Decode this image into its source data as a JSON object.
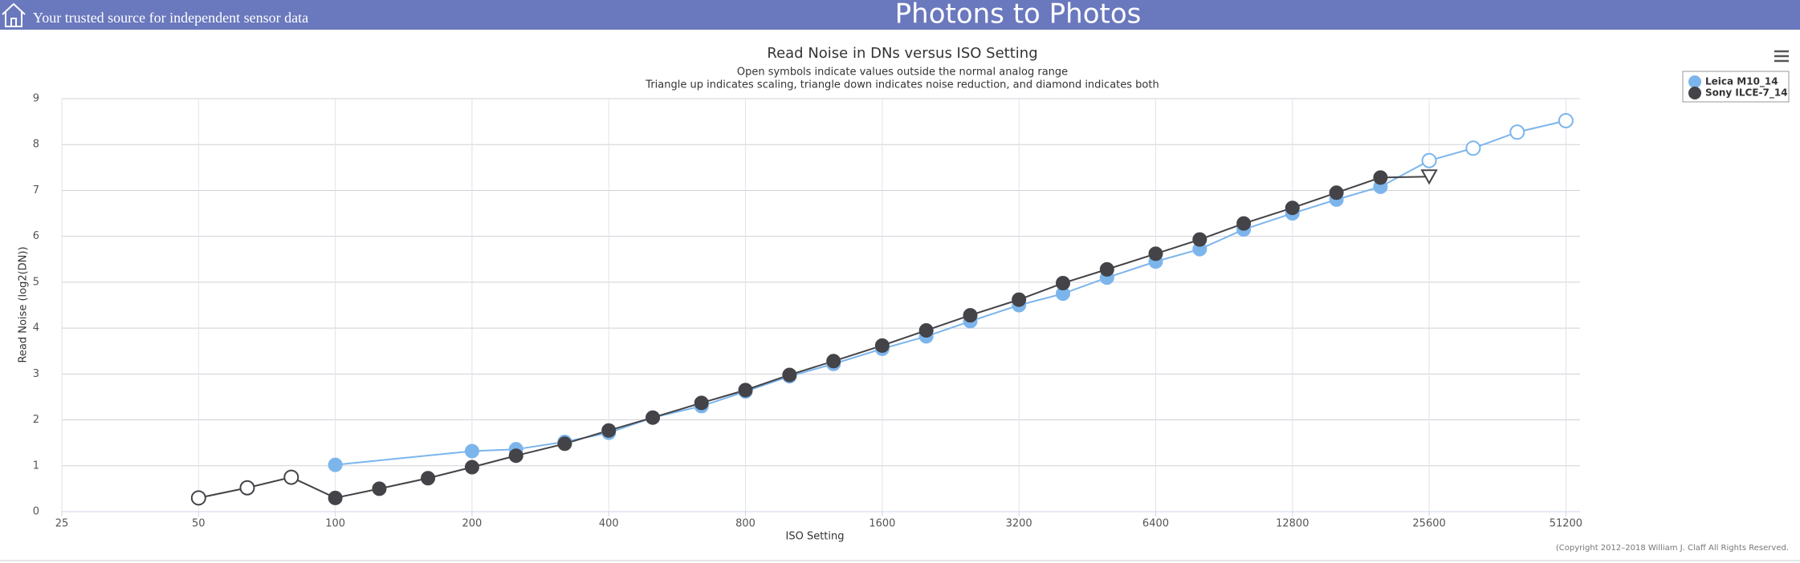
{
  "header": {
    "tagline": "Your trusted source for independent sensor data",
    "site_title": "Photons to Photos"
  },
  "copyright": "(Copyright 2012–2018 William J. Claff All Rights Reserved.",
  "chart_data": {
    "type": "line",
    "title": "Read Noise in DNs versus ISO Setting",
    "subtitle": [
      "Open symbols indicate values outside the normal analog range",
      "Triangle up indicates scaling, triangle down indicates noise reduction, and diamond indicates both"
    ],
    "x_label": "ISO Setting",
    "y_label": "Read Noise (log2(DN))",
    "x_scale": "log2",
    "xlim": [
      25,
      55000
    ],
    "xticks": [
      25,
      50,
      100,
      200,
      400,
      800,
      1600,
      3200,
      6400,
      12800,
      25600,
      51200
    ],
    "ylim": [
      0,
      9
    ],
    "yticks": [
      0,
      1,
      2,
      3,
      4,
      5,
      6,
      7,
      8,
      9
    ],
    "grid": true,
    "legend": "top-right",
    "series": [
      {
        "name": "Leica M10_14",
        "color": "#7cb5ec",
        "x": [
          100,
          200,
          250,
          320,
          400,
          500,
          640,
          800,
          1000,
          1250,
          1600,
          2000,
          2500,
          3200,
          4000,
          5000,
          6400,
          8000,
          10000,
          12800,
          16000,
          20000,
          25600,
          32000,
          40000,
          51200
        ],
        "values": [
          1.02,
          1.32,
          1.36,
          1.52,
          1.72,
          2.05,
          2.3,
          2.62,
          2.95,
          3.22,
          3.55,
          3.82,
          4.15,
          4.5,
          4.75,
          5.1,
          5.45,
          5.72,
          6.15,
          6.5,
          6.8,
          7.08,
          7.65,
          7.92,
          8.27,
          8.52
        ],
        "markers": [
          "filled",
          "filled",
          "filled",
          "filled",
          "filled",
          "filled",
          "filled",
          "filled",
          "filled",
          "filled",
          "filled",
          "filled",
          "filled",
          "filled",
          "filled",
          "filled",
          "filled",
          "filled",
          "filled",
          "filled",
          "filled",
          "filled",
          "open",
          "open",
          "open",
          "open"
        ]
      },
      {
        "name": "Sony ILCE-7_14",
        "color": "#434348",
        "x": [
          50,
          64,
          80,
          100,
          125,
          160,
          200,
          250,
          320,
          400,
          500,
          640,
          800,
          1000,
          1250,
          1600,
          2000,
          2500,
          3200,
          4000,
          5000,
          6400,
          8000,
          10000,
          12800,
          16000,
          20000,
          25600
        ],
        "values": [
          0.3,
          0.52,
          0.75,
          0.3,
          0.5,
          0.73,
          0.97,
          1.22,
          1.48,
          1.77,
          2.05,
          2.37,
          2.65,
          2.98,
          3.28,
          3.62,
          3.95,
          4.28,
          4.62,
          4.98,
          5.28,
          5.62,
          5.93,
          6.28,
          6.62,
          6.95,
          7.28,
          7.3
        ],
        "markers": [
          "open",
          "open",
          "open",
          "filled",
          "filled",
          "filled",
          "filled",
          "filled",
          "filled",
          "filled",
          "filled",
          "filled",
          "filled",
          "filled",
          "filled",
          "filled",
          "filled",
          "filled",
          "filled",
          "filled",
          "filled",
          "filled",
          "filled",
          "filled",
          "filled",
          "filled",
          "filled",
          "triangle-down"
        ]
      }
    ]
  }
}
